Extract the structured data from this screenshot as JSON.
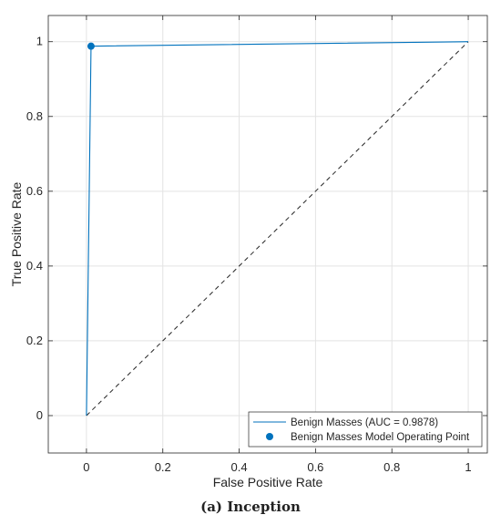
{
  "caption": "(a) Inception",
  "chart_data": {
    "type": "line",
    "xlabel": "False Positive Rate",
    "ylabel": "True Positive Rate",
    "xlim": [
      -0.1,
      1.05
    ],
    "ylim": [
      -0.1,
      1.07
    ],
    "xticks": [
      0,
      0.2,
      0.4,
      0.6,
      0.8,
      1
    ],
    "xtick_labels": [
      "0",
      "0.2",
      "0.4",
      "0.6",
      "0.8",
      "1"
    ],
    "yticks": [
      0,
      0.2,
      0.4,
      0.6,
      0.8,
      1
    ],
    "ytick_labels": [
      "0",
      "0.2",
      "0.4",
      "0.6",
      "0.8",
      "1"
    ],
    "grid": true,
    "legend_position": "bottom-right",
    "series": [
      {
        "name": "Benign Masses (AUC = 0.9878)",
        "kind": "line",
        "color": "#0072BD",
        "x": [
          0,
          0.012,
          1
        ],
        "y": [
          0,
          0.988,
          1
        ]
      },
      {
        "name": "Benign Masses Model Operating Point",
        "kind": "marker",
        "color": "#0072BD",
        "x": [
          0.012
        ],
        "y": [
          0.988
        ]
      },
      {
        "kind": "reference",
        "style": "dashed",
        "color": "#262626",
        "x": [
          0,
          1
        ],
        "y": [
          0,
          1
        ]
      }
    ]
  }
}
